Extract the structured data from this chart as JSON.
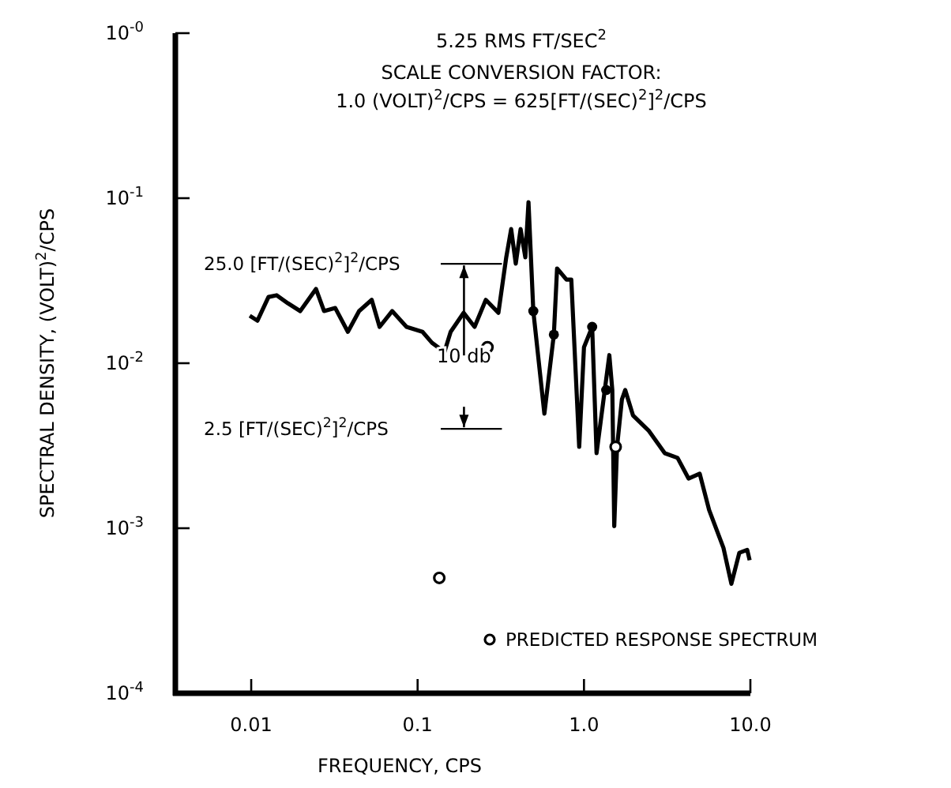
{
  "chart_data": {
    "type": "line",
    "title": "5.25 RMS FT/SEC$^{2}$",
    "subtitle": "SCALE CONVERSION FACTOR:",
    "annotations": [
      "1.0 (VOLT)$^{2}$/CPS = 625[FT/(SEC)$^{2}$]$^{2}$/CPS",
      {
        "text": "10 db",
        "x": 0.19,
        "y": 0.04
      }
    ],
    "xlabel": "FREQUENCY, CPS",
    "ylabel": "SPECTRAL DENSITY, (VOLT)$^{2}$/CPS",
    "log": "xy",
    "legend": "bottom right",
    "grid": false,
    "xlim": [
      0.0035,
      10
    ],
    "xticks": [
      0.01,
      0.1,
      {
        "value": 1,
        "label": "1.0"
      },
      {
        "value": 10,
        "label": "10.0"
      }
    ],
    "ylim": [
      0.0001,
      1
    ],
    "yticks": [
      {
        "value": 0.0001,
        "label": "10$^{-4}$"
      },
      {
        "value": 0.001,
        "label": "10$^{-3}$"
      },
      {
        "value": 0.01,
        "label": "10$^{-2}$"
      },
      {
        "value": 0.1,
        "label": "10$^{-1}$"
      },
      {
        "value": 1,
        "label": "10$^{-0}$"
      }
    ],
    "ref_lines": [
      {
        "axis": "y",
        "value": 0.04,
        "label": "25.0 [FT/(SEC)$^{2}$]$^{2}$/CPS"
      },
      {
        "axis": "y",
        "value": 0.004,
        "label": "2.5 [FT/(SEC)$^{2}$]$^{2}$/CPS"
      }
    ],
    "series": [
      {
        "color": "#000000",
        "marker": "none",
        "x": [
          0.0098,
          0.0109,
          0.0127,
          0.0142,
          0.0166,
          0.0197,
          0.0245,
          0.0274,
          0.032,
          0.0381,
          0.0445,
          0.053,
          0.0591,
          0.0704,
          0.0858,
          0.107,
          0.122,
          0.145,
          0.158,
          0.189,
          0.22,
          0.257,
          0.306,
          0.341,
          0.365,
          0.389,
          0.416,
          0.444,
          0.464,
          0.496,
          0.578,
          0.659,
          0.689,
          0.785,
          0.839,
          0.936,
          1.0,
          1.12,
          1.19,
          1.42,
          1.48,
          1.52,
          1.58,
          1.69,
          1.77,
          1.97,
          2.46,
          3.06,
          3.65,
          4.25,
          4.96,
          5.65,
          6.89,
          7.69,
          8.58,
          9.57,
          9.9
        ],
        "values": [
          0.0194,
          0.0181,
          0.0252,
          0.0258,
          0.0231,
          0.0207,
          0.0282,
          0.0207,
          0.0216,
          0.0155,
          0.0207,
          0.0242,
          0.0166,
          0.0207,
          0.0166,
          0.0155,
          0.0133,
          0.0117,
          0.0155,
          0.0202,
          0.0166,
          0.0242,
          0.0202,
          0.0438,
          0.065,
          0.0401,
          0.065,
          0.0438,
          0.0946,
          0.0207,
          0.00494,
          0.0149,
          0.0375,
          0.0321,
          0.0321,
          0.00311,
          0.0125,
          0.0166,
          0.00285,
          0.0112,
          0.00688,
          0.00103,
          0.00311,
          0.00603,
          0.00688,
          0.00483,
          0.00388,
          0.00285,
          0.00267,
          0.002,
          0.00214,
          0.00129,
          0.00076,
          0.00046,
          0.00071,
          0.00074,
          0.00064
        ]
      },
      {
        "type": "scatter",
        "color": "#000000",
        "marker": "circle",
        "x": [
          0.496,
          0.659,
          1.12,
          1.36
        ],
        "values": [
          0.0207,
          0.0149,
          0.0166,
          0.00688
        ]
      },
      {
        "type": "scatter",
        "name": "PREDICTED RESPONSE SPECTRUM",
        "color": "#000000",
        "marker": "circle",
        "x": [
          0.263,
          1.55,
          0.135
        ],
        "values": [
          0.0125,
          0.00311,
          0.0005
        ]
      }
    ]
  }
}
